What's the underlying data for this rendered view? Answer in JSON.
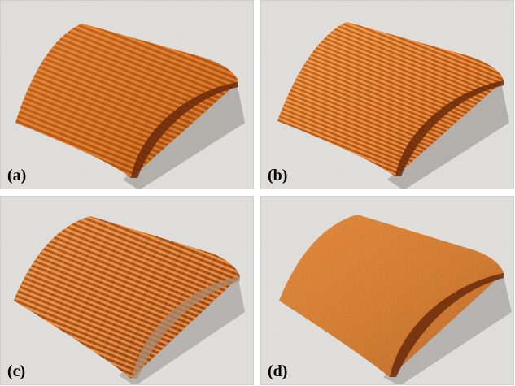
{
  "panels": [
    {
      "id": "a",
      "label": "(a)"
    },
    {
      "id": "b",
      "label": "(b)"
    },
    {
      "id": "c",
      "label": "(c)"
    },
    {
      "id": "d",
      "label": "(d)"
    }
  ],
  "colors": {
    "ground": "#dcdad6",
    "shadow": "#8e8a86",
    "fabric": "#c9661b",
    "fabric_dark": "#8a3a08",
    "fabric_light": "#f09a4a",
    "inner": "#6a2a0a"
  }
}
